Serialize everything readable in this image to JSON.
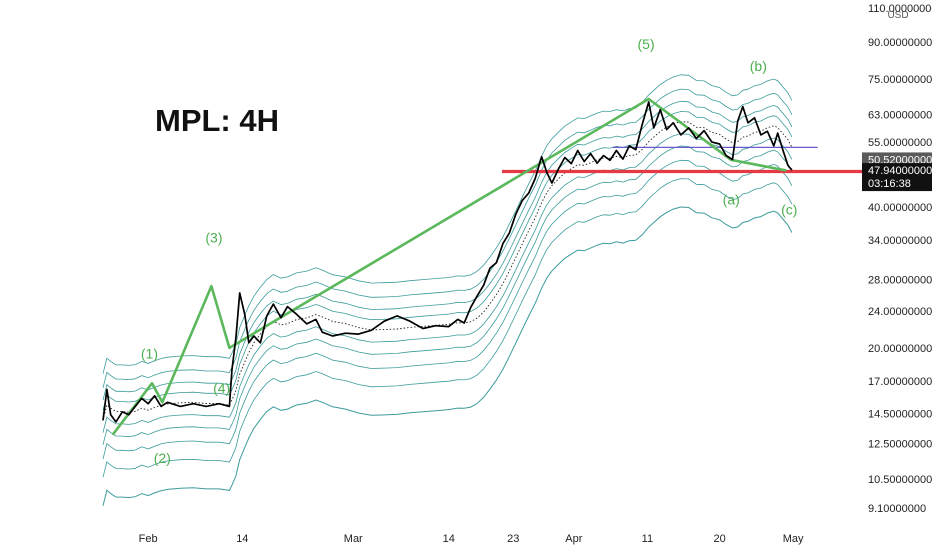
{
  "chart_data": {
    "type": "line",
    "title": "MPL: 4H",
    "currency": "USD",
    "y_scale": "log",
    "ylim": [
      8.6,
      112
    ],
    "y_ticks": [
      {
        "v": 110,
        "label": "110.00000000"
      },
      {
        "v": 90,
        "label": "90.00000000"
      },
      {
        "v": 75,
        "label": "75.00000000"
      },
      {
        "v": 63,
        "label": "63.00000000"
      },
      {
        "v": 55,
        "label": "55.00000000"
      },
      {
        "v": 40,
        "label": "40.00000000"
      },
      {
        "v": 34,
        "label": "34.00000000"
      },
      {
        "v": 28,
        "label": "28.00000000"
      },
      {
        "v": 24,
        "label": "24.00000000"
      },
      {
        "v": 20,
        "label": "20.00000000"
      },
      {
        "v": 17,
        "label": "17.00000000"
      },
      {
        "v": 14.5,
        "label": "14.50000000"
      },
      {
        "v": 12.5,
        "label": "12.50000000"
      },
      {
        "v": 10.5,
        "label": "10.50000000"
      },
      {
        "v": 9.1,
        "label": "9.10000000"
      }
    ],
    "x_ticks": [
      "Feb",
      "14",
      "Mar",
      "14",
      "23",
      "Apr",
      "11",
      "20",
      "May"
    ],
    "price_series": [
      {
        "x": 0.0,
        "y": 14.0
      },
      {
        "x": 0.3,
        "y": 16.3
      },
      {
        "x": 0.6,
        "y": 14.4
      },
      {
        "x": 1.0,
        "y": 13.9
      },
      {
        "x": 1.5,
        "y": 14.6
      },
      {
        "x": 2.0,
        "y": 14.4
      },
      {
        "x": 2.5,
        "y": 15.0
      },
      {
        "x": 3.0,
        "y": 15.6
      },
      {
        "x": 3.5,
        "y": 15.2
      },
      {
        "x": 4.0,
        "y": 15.8
      },
      {
        "x": 4.5,
        "y": 15.0
      },
      {
        "x": 5.0,
        "y": 15.3
      },
      {
        "x": 6.0,
        "y": 15.0
      },
      {
        "x": 7.0,
        "y": 15.2
      },
      {
        "x": 8.0,
        "y": 15.0
      },
      {
        "x": 9.0,
        "y": 15.2
      },
      {
        "x": 9.8,
        "y": 15.0
      },
      {
        "x": 10.0,
        "y": 18.0
      },
      {
        "x": 10.3,
        "y": 21.0
      },
      {
        "x": 10.6,
        "y": 26.2
      },
      {
        "x": 11.0,
        "y": 23.5
      },
      {
        "x": 11.3,
        "y": 20.5
      },
      {
        "x": 11.7,
        "y": 21.2
      },
      {
        "x": 12.2,
        "y": 20.5
      },
      {
        "x": 12.7,
        "y": 23.4
      },
      {
        "x": 13.2,
        "y": 24.8
      },
      {
        "x": 13.8,
        "y": 23.2
      },
      {
        "x": 14.3,
        "y": 24.5
      },
      {
        "x": 15.0,
        "y": 23.6
      },
      {
        "x": 15.8,
        "y": 22.5
      },
      {
        "x": 16.5,
        "y": 23.0
      },
      {
        "x": 17.0,
        "y": 21.6
      },
      {
        "x": 17.8,
        "y": 21.2
      },
      {
        "x": 18.8,
        "y": 21.5
      },
      {
        "x": 19.8,
        "y": 21.4
      },
      {
        "x": 20.8,
        "y": 21.8
      },
      {
        "x": 21.8,
        "y": 22.8
      },
      {
        "x": 22.8,
        "y": 23.4
      },
      {
        "x": 23.8,
        "y": 22.8
      },
      {
        "x": 24.8,
        "y": 22.0
      },
      {
        "x": 25.8,
        "y": 22.3
      },
      {
        "x": 26.8,
        "y": 22.2
      },
      {
        "x": 27.5,
        "y": 23.0
      },
      {
        "x": 28.0,
        "y": 22.6
      },
      {
        "x": 28.5,
        "y": 24.4
      },
      {
        "x": 29.0,
        "y": 25.8
      },
      {
        "x": 29.5,
        "y": 27.2
      },
      {
        "x": 30.0,
        "y": 29.6
      },
      {
        "x": 30.5,
        "y": 30.4
      },
      {
        "x": 31.0,
        "y": 33.4
      },
      {
        "x": 31.5,
        "y": 35.2
      },
      {
        "x": 32.0,
        "y": 38.6
      },
      {
        "x": 32.5,
        "y": 41.3
      },
      {
        "x": 33.0,
        "y": 42.8
      },
      {
        "x": 33.5,
        "y": 46.0
      },
      {
        "x": 34.0,
        "y": 51.2
      },
      {
        "x": 34.4,
        "y": 47.4
      },
      {
        "x": 34.8,
        "y": 45.0
      },
      {
        "x": 35.3,
        "y": 48.2
      },
      {
        "x": 35.8,
        "y": 51.0
      },
      {
        "x": 36.3,
        "y": 49.5
      },
      {
        "x": 36.8,
        "y": 52.8
      },
      {
        "x": 37.3,
        "y": 50.0
      },
      {
        "x": 37.8,
        "y": 52.0
      },
      {
        "x": 38.3,
        "y": 49.6
      },
      {
        "x": 38.8,
        "y": 51.5
      },
      {
        "x": 39.3,
        "y": 50.3
      },
      {
        "x": 39.8,
        "y": 52.8
      },
      {
        "x": 40.3,
        "y": 50.6
      },
      {
        "x": 40.8,
        "y": 54.0
      },
      {
        "x": 41.3,
        "y": 53.0
      },
      {
        "x": 41.8,
        "y": 60.0
      },
      {
        "x": 42.3,
        "y": 67.0
      },
      {
        "x": 42.7,
        "y": 59.0
      },
      {
        "x": 43.2,
        "y": 64.5
      },
      {
        "x": 43.7,
        "y": 58.5
      },
      {
        "x": 44.2,
        "y": 60.5
      },
      {
        "x": 44.8,
        "y": 57.0
      },
      {
        "x": 45.4,
        "y": 59.0
      },
      {
        "x": 46.0,
        "y": 56.0
      },
      {
        "x": 46.6,
        "y": 58.2
      },
      {
        "x": 47.2,
        "y": 55.0
      },
      {
        "x": 47.8,
        "y": 54.5
      },
      {
        "x": 48.3,
        "y": 51.5
      },
      {
        "x": 48.8,
        "y": 50.5
      },
      {
        "x": 49.2,
        "y": 61.0
      },
      {
        "x": 49.6,
        "y": 65.5
      },
      {
        "x": 50.0,
        "y": 60.5
      },
      {
        "x": 50.5,
        "y": 62.0
      },
      {
        "x": 51.0,
        "y": 57.0
      },
      {
        "x": 51.5,
        "y": 58.0
      },
      {
        "x": 52.0,
        "y": 54.0
      },
      {
        "x": 52.3,
        "y": 57.5
      },
      {
        "x": 52.7,
        "y": 53.0
      },
      {
        "x": 53.1,
        "y": 49.0
      },
      {
        "x": 53.4,
        "y": 47.94
      }
    ],
    "wave_lines": [
      {
        "x": 0.8,
        "y": 13.1
      },
      {
        "x": 3.8,
        "y": 16.8
      },
      {
        "x": 4.6,
        "y": 15.3
      },
      {
        "x": 8.4,
        "y": 27.1
      },
      {
        "x": 9.8,
        "y": 20.0
      },
      {
        "x": 42.3,
        "y": 68.0
      },
      {
        "x": 48.7,
        "y": 50.4
      },
      {
        "x": 52.9,
        "y": 47.9
      }
    ],
    "wave_labels": [
      {
        "text": "(1)",
        "x": 3.6,
        "y": 19.0
      },
      {
        "text": "(2)",
        "x": 4.6,
        "y": 11.35
      },
      {
        "text": "(3)",
        "x": 8.6,
        "y": 33.6
      },
      {
        "text": "(4)",
        "x": 9.2,
        "y": 16.0
      },
      {
        "text": "(5)",
        "x": 42.1,
        "y": 87.0
      },
      {
        "text": "(a)",
        "x": 48.7,
        "y": 40.5
      },
      {
        "text": "(b)",
        "x": 50.8,
        "y": 78.0
      },
      {
        "text": "(c)",
        "x": 53.2,
        "y": 38.5
      }
    ],
    "support_level": 47.6,
    "resistance_level": {
      "y": 53.6,
      "x_start": 39.5,
      "x_end": 55.4
    },
    "price_tags": [
      {
        "label": "50.52000000",
        "value": 50.52,
        "color": "#5b5b5b"
      },
      {
        "label": "47.94000000",
        "value": 47.94,
        "color": "#111111"
      },
      {
        "label": "03:16:38",
        "color": "#111111"
      }
    ],
    "colors": {
      "price": "#000000",
      "wave": "#5cb85c",
      "wave_label": "#4caf50",
      "support": "#e53945",
      "resistance": "#6a5acd",
      "bands": "#1a8a8a",
      "mid_dotted": "#222222"
    },
    "grid": false,
    "legend": "none"
  }
}
